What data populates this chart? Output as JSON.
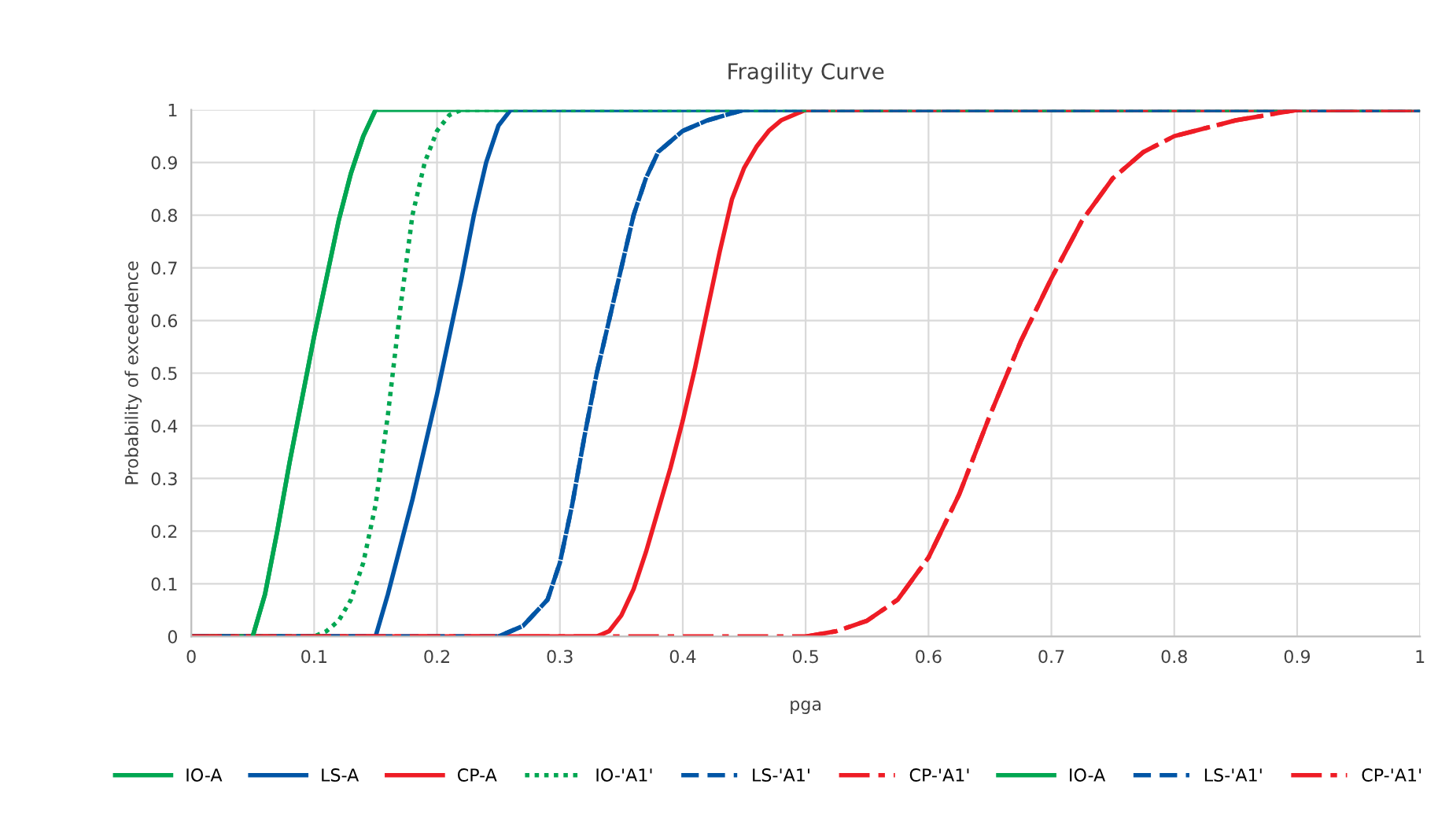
{
  "chart_data": {
    "type": "line",
    "title": "Fragility Curve",
    "xlabel": "pga",
    "ylabel": "Probability of exceedence",
    "xlim": [
      0,
      1
    ],
    "ylim": [
      0,
      1
    ],
    "xticks": [
      0,
      0.1,
      0.2,
      0.3,
      0.4,
      0.5,
      0.6,
      0.7,
      0.8,
      0.9,
      1
    ],
    "yticks": [
      0,
      0.1,
      0.2,
      0.3,
      0.4,
      0.5,
      0.6,
      0.7,
      0.8,
      0.9,
      1
    ],
    "grid": true,
    "legend": "bottom",
    "marker": "none",
    "series": [
      {
        "name": "IO-A",
        "color": "#00a651",
        "line_style": "solid",
        "x": [
          0,
          0.05,
          0.06,
          0.07,
          0.08,
          0.09,
          0.1,
          0.11,
          0.12,
          0.13,
          0.14,
          0.15,
          1
        ],
        "values": [
          0,
          0,
          0.08,
          0.2,
          0.33,
          0.45,
          0.57,
          0.68,
          0.79,
          0.88,
          0.95,
          1,
          1
        ]
      },
      {
        "name": "LS-A",
        "color": "#0055a5",
        "line_style": "solid",
        "x": [
          0,
          0.15,
          0.16,
          0.17,
          0.18,
          0.19,
          0.2,
          0.21,
          0.22,
          0.23,
          0.24,
          0.25,
          0.26,
          1
        ],
        "values": [
          0,
          0,
          0.08,
          0.17,
          0.26,
          0.36,
          0.46,
          0.57,
          0.68,
          0.8,
          0.9,
          0.97,
          1,
          1
        ]
      },
      {
        "name": "CP-A",
        "color": "#ee1c25",
        "line_style": "solid",
        "x": [
          0,
          0.33,
          0.34,
          0.35,
          0.36,
          0.37,
          0.38,
          0.39,
          0.4,
          0.41,
          0.42,
          0.43,
          0.44,
          0.45,
          0.46,
          0.47,
          0.48,
          0.5,
          1
        ],
        "values": [
          0,
          0,
          0.01,
          0.04,
          0.09,
          0.16,
          0.24,
          0.32,
          0.41,
          0.51,
          0.62,
          0.73,
          0.83,
          0.89,
          0.93,
          0.96,
          0.98,
          1,
          1
        ]
      },
      {
        "name": "IO-'A1'",
        "color": "#00a651",
        "line_style": "dotted",
        "x": [
          0,
          0.1,
          0.11,
          0.12,
          0.13,
          0.14,
          0.15,
          0.16,
          0.17,
          0.18,
          0.19,
          0.2,
          0.21,
          0.22,
          1
        ],
        "values": [
          0,
          0,
          0.01,
          0.03,
          0.07,
          0.14,
          0.25,
          0.42,
          0.62,
          0.8,
          0.9,
          0.96,
          0.99,
          1,
          1
        ]
      },
      {
        "name": "LS-'A1'",
        "color": "#0055a5",
        "line_style": "dashed",
        "x": [
          0,
          0.25,
          0.27,
          0.29,
          0.3,
          0.31,
          0.32,
          0.33,
          0.34,
          0.35,
          0.36,
          0.37,
          0.38,
          0.4,
          0.42,
          0.45,
          1
        ],
        "values": [
          0,
          0,
          0.02,
          0.07,
          0.14,
          0.25,
          0.38,
          0.5,
          0.6,
          0.7,
          0.8,
          0.87,
          0.92,
          0.96,
          0.98,
          1,
          1
        ]
      },
      {
        "name": "CP-'A1'",
        "color": "#ee1c25",
        "line_style": "dashdot",
        "x": [
          0,
          0.5,
          0.525,
          0.55,
          0.575,
          0.6,
          0.625,
          0.65,
          0.675,
          0.7,
          0.725,
          0.75,
          0.775,
          0.8,
          0.85,
          0.9,
          1
        ],
        "values": [
          0,
          0,
          0.01,
          0.03,
          0.07,
          0.15,
          0.27,
          0.42,
          0.56,
          0.68,
          0.79,
          0.87,
          0.92,
          0.95,
          0.98,
          1,
          1
        ]
      },
      {
        "name": "IO-A",
        "color": "#00a651",
        "line_style": "solid",
        "x": [
          0.05,
          0.06,
          0.07,
          0.08,
          0.09,
          0.1,
          0.11,
          0.12,
          0.13,
          0.14,
          0.15
        ],
        "values": [
          0,
          0.08,
          0.2,
          0.33,
          0.45,
          0.57,
          0.68,
          0.79,
          0.88,
          0.95,
          1
        ]
      },
      {
        "name": "LS-'A1'",
        "color": "#0055a5",
        "line_style": "dashed",
        "x": [
          0.25,
          0.27,
          0.29,
          0.3,
          0.31,
          0.32,
          0.33,
          0.34,
          0.35,
          0.36,
          0.37,
          0.38,
          0.4,
          0.42,
          0.45
        ],
        "values": [
          0,
          0.02,
          0.07,
          0.14,
          0.25,
          0.38,
          0.5,
          0.6,
          0.7,
          0.8,
          0.87,
          0.92,
          0.96,
          0.98,
          1
        ]
      },
      {
        "name": "CP-'A1'",
        "color": "#ee1c25",
        "line_style": "dashdot",
        "x": [
          0.5,
          0.525,
          0.55,
          0.575,
          0.6,
          0.625,
          0.65,
          0.675,
          0.7,
          0.725,
          0.75,
          0.775,
          0.8,
          0.85,
          0.9
        ],
        "values": [
          0,
          0.01,
          0.03,
          0.07,
          0.15,
          0.27,
          0.42,
          0.56,
          0.68,
          0.79,
          0.87,
          0.92,
          0.95,
          0.98,
          1
        ]
      }
    ]
  }
}
